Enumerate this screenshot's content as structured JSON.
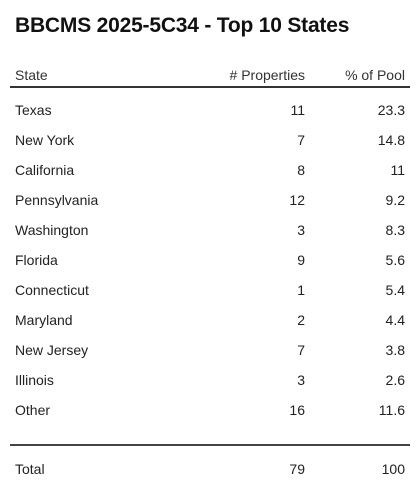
{
  "title": "BBCMS 2025-5C34 - Top 10 States",
  "columns": {
    "state": "State",
    "properties": "# Properties",
    "pct_pool": "% of Pool"
  },
  "rows": [
    {
      "state": "Texas",
      "properties": "11",
      "pct": "23.3"
    },
    {
      "state": "New York",
      "properties": "7",
      "pct": "14.8"
    },
    {
      "state": "California",
      "properties": "8",
      "pct": "11"
    },
    {
      "state": "Pennsylvania",
      "properties": "12",
      "pct": "9.2"
    },
    {
      "state": "Washington",
      "properties": "3",
      "pct": "8.3"
    },
    {
      "state": "Florida",
      "properties": "9",
      "pct": "5.6"
    },
    {
      "state": "Connecticut",
      "properties": "1",
      "pct": "5.4"
    },
    {
      "state": "Maryland",
      "properties": "2",
      "pct": "4.4"
    },
    {
      "state": "New Jersey",
      "properties": "7",
      "pct": "3.8"
    },
    {
      "state": "Illinois",
      "properties": "3",
      "pct": "2.6"
    },
    {
      "state": "Other",
      "properties": "16",
      "pct": "11.6"
    }
  ],
  "total": {
    "label": "Total",
    "properties": "79",
    "pct": "100"
  },
  "chart_data": {
    "type": "table",
    "title": "BBCMS 2025-5C34 - Top 10 States",
    "columns": [
      "State",
      "# Properties",
      "% of Pool"
    ],
    "rows": [
      [
        "Texas",
        11,
        23.3
      ],
      [
        "New York",
        7,
        14.8
      ],
      [
        "California",
        8,
        11
      ],
      [
        "Pennsylvania",
        12,
        9.2
      ],
      [
        "Washington",
        3,
        8.3
      ],
      [
        "Florida",
        9,
        5.6
      ],
      [
        "Connecticut",
        1,
        5.4
      ],
      [
        "Maryland",
        2,
        4.4
      ],
      [
        "New Jersey",
        7,
        3.8
      ],
      [
        "Illinois",
        3,
        2.6
      ],
      [
        "Other",
        16,
        11.6
      ]
    ],
    "total": [
      "Total",
      79,
      100
    ]
  }
}
